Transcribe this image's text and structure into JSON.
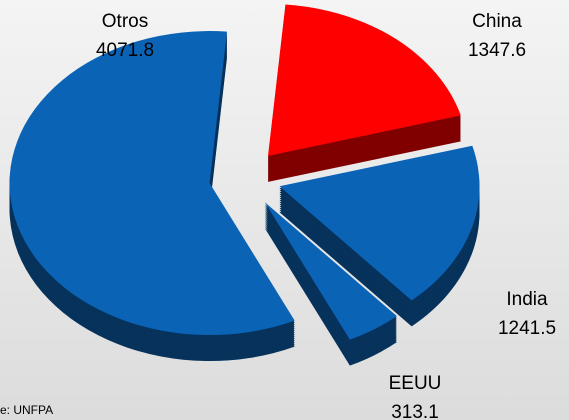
{
  "chart_data": {
    "type": "pie",
    "categories": [
      "China",
      "India",
      "EEUU",
      "Otros"
    ],
    "values": [
      1347.6,
      1241.5,
      313.1,
      4071.8
    ],
    "colors": [
      "#ff0000",
      "#0b63b6",
      "#0b63b6",
      "#0b63b6"
    ],
    "source": "e: UNFPA"
  }
}
